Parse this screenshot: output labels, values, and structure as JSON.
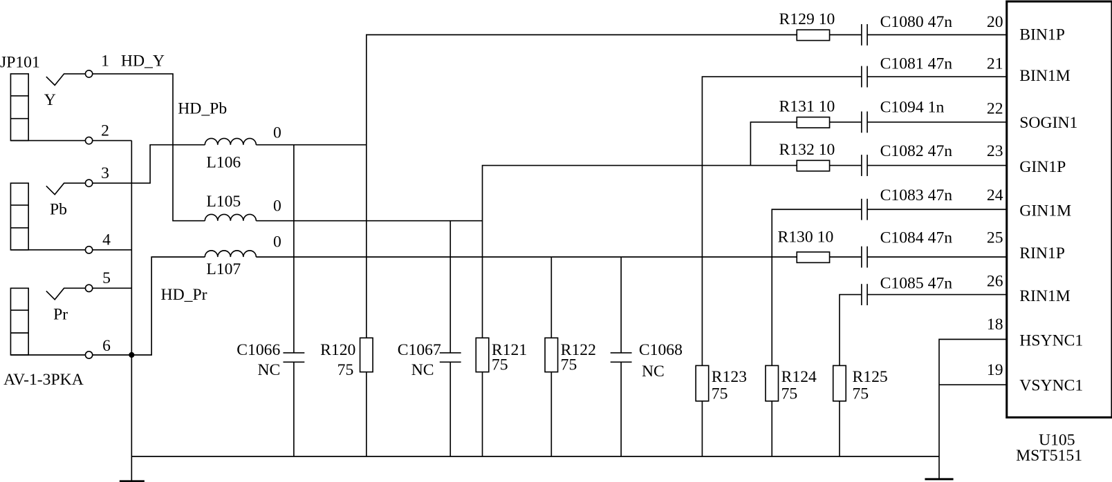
{
  "connector": {
    "ref": "JP101",
    "part": "AV-1-3PKA",
    "channel_labels": [
      "Y",
      "Pb",
      "Pr"
    ],
    "pins": [
      "1",
      "2",
      "3",
      "4",
      "5",
      "6"
    ]
  },
  "nets": {
    "hd_y": "HD_Y",
    "hd_pb": "HD_Pb",
    "hd_pr": "HD_Pr"
  },
  "inductors": [
    {
      "ref": "L106",
      "value": "0"
    },
    {
      "ref": "L105",
      "value": "0"
    },
    {
      "ref": "L107",
      "value": "0"
    }
  ],
  "shunts": [
    {
      "ref": "C1066",
      "value": "NC"
    },
    {
      "ref": "R120",
      "value": "75"
    },
    {
      "ref": "C1067",
      "value": "NC"
    },
    {
      "ref": "R121",
      "value": "75"
    },
    {
      "ref": "R122",
      "value": "75"
    },
    {
      "ref": "C1068",
      "value": "NC"
    },
    {
      "ref": "R123",
      "value": "75"
    },
    {
      "ref": "R124",
      "value": "75"
    },
    {
      "ref": "R125",
      "value": "75"
    }
  ],
  "series_resistors": [
    {
      "ref": "R129",
      "value": "10"
    },
    {
      "ref": "R131",
      "value": "10"
    },
    {
      "ref": "R132",
      "value": "10"
    },
    {
      "ref": "R130",
      "value": "10"
    }
  ],
  "coupling_caps": [
    {
      "ref": "C1080",
      "value": "47n"
    },
    {
      "ref": "C1081",
      "value": "47n"
    },
    {
      "ref": "C1094",
      "value": "1n"
    },
    {
      "ref": "C1082",
      "value": "47n"
    },
    {
      "ref": "C1083",
      "value": "47n"
    },
    {
      "ref": "C1084",
      "value": "47n"
    },
    {
      "ref": "C1085",
      "value": "47n"
    }
  ],
  "ic": {
    "ref": "U105",
    "part": "MST5151",
    "pins": [
      {
        "num": "20",
        "name": "BIN1P"
      },
      {
        "num": "21",
        "name": "BIN1M"
      },
      {
        "num": "22",
        "name": "SOGIN1"
      },
      {
        "num": "23",
        "name": "GIN1P"
      },
      {
        "num": "24",
        "name": "GIN1M"
      },
      {
        "num": "25",
        "name": "RIN1P"
      },
      {
        "num": "26",
        "name": "RIN1M"
      },
      {
        "num": "18",
        "name": "HSYNC1"
      },
      {
        "num": "19",
        "name": "VSYNC1"
      }
    ]
  }
}
